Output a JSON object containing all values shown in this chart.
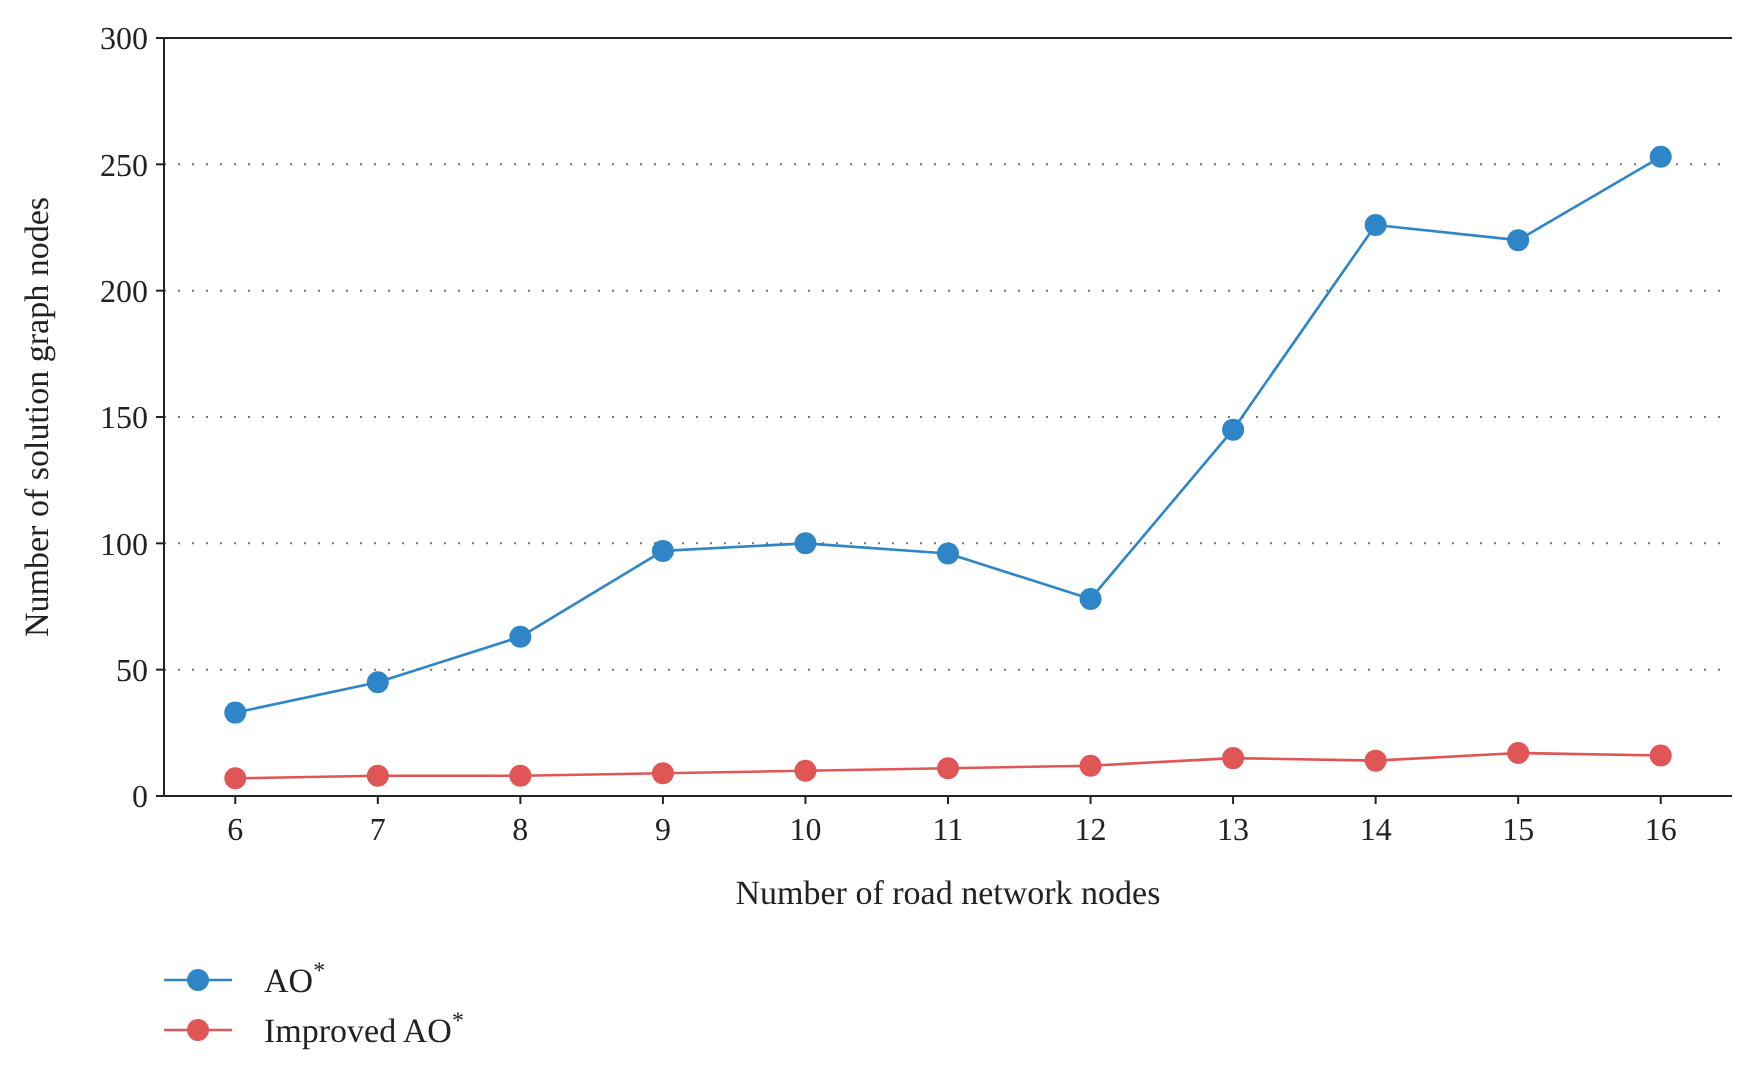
{
  "chart_data": {
    "type": "line",
    "xlabel": "Number of road network nodes",
    "ylabel": "Number of solution graph nodes",
    "categories": [
      "6",
      "7",
      "8",
      "9",
      "10",
      "11",
      "12",
      "13",
      "14",
      "15",
      "16"
    ],
    "ylim": [
      0,
      300
    ],
    "yticks": [
      0,
      50,
      100,
      150,
      200,
      250,
      300
    ],
    "grid": "y",
    "legend": "bottom left",
    "marker": "circle",
    "line_style": "solid",
    "series": [
      {
        "name": "AO$^{*}$",
        "color": "#2e86c8",
        "values": [
          33,
          45,
          63,
          97,
          100,
          96,
          78,
          145,
          226,
          220,
          253
        ]
      },
      {
        "name": "Improved AO$^{*}$",
        "color": "#e05555",
        "values": [
          7,
          8,
          8,
          9,
          10,
          11,
          12,
          15,
          14,
          17,
          16
        ]
      }
    ]
  }
}
